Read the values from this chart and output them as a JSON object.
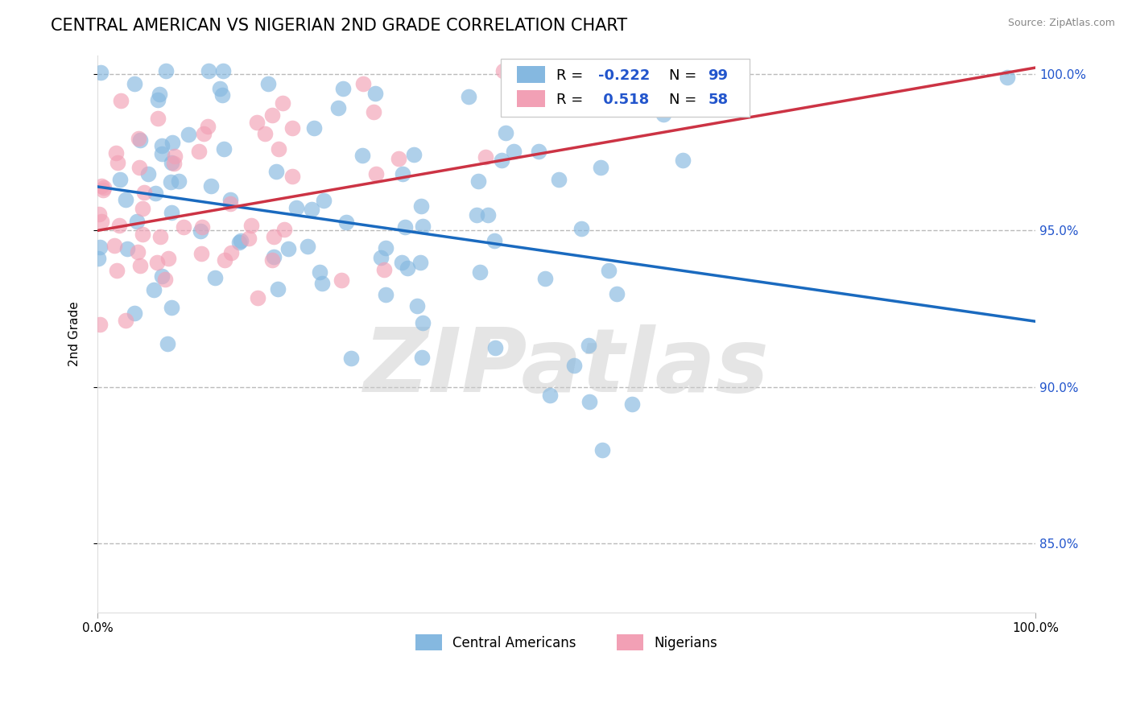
{
  "title": "CENTRAL AMERICAN VS NIGERIAN 2ND GRADE CORRELATION CHART",
  "source": "Source: ZipAtlas.com",
  "ylabel": "2nd Grade",
  "xlim": [
    0.0,
    1.0
  ],
  "ylim": [
    0.828,
    1.006
  ],
  "yticks": [
    0.85,
    0.9,
    0.95,
    1.0
  ],
  "ytick_labels": [
    "85.0%",
    "90.0%",
    "95.0%",
    "100.0%"
  ],
  "xtick_labels": [
    "0.0%",
    "100.0%"
  ],
  "blue_R": -0.222,
  "blue_N": 99,
  "pink_R": 0.518,
  "pink_N": 58,
  "blue_color": "#85b8e0",
  "pink_color": "#f2a0b5",
  "blue_line_color": "#1a6abf",
  "pink_line_color": "#cc3344",
  "watermark": "ZIPatlas",
  "watermark_color": "#cccccc",
  "background_color": "#ffffff",
  "legend_R_color": "#2255cc",
  "title_fontsize": 15,
  "label_fontsize": 11,
  "blue_trend_start": 0.964,
  "blue_trend_end": 0.921,
  "pink_trend_start": 0.95,
  "pink_trend_end": 1.002
}
